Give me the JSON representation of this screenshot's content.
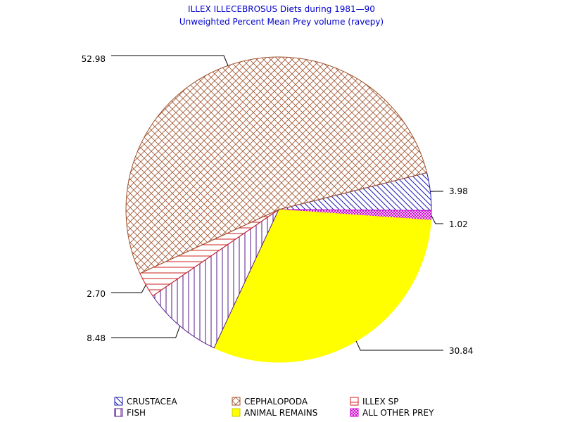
{
  "chart_data": {
    "type": "pie",
    "title": "ILLEX ILLECEBROSUS Diets during 1981—90",
    "subtitle": "Unweighted Percent Mean Prey volume (ravepy)",
    "slices": [
      {
        "name": "CRUSTACEA",
        "value": 3.98,
        "label": "3.98",
        "color": "#1a1ab3",
        "pattern": "diag-down"
      },
      {
        "name": "ALL OTHER PREY",
        "value": 1.02,
        "label": "1.02",
        "color": "#cc00cc",
        "pattern": "crosshatch-dense"
      },
      {
        "name": "ANIMAL REMAINS",
        "value": 30.84,
        "label": "30.84",
        "color": "#ffff00",
        "pattern": "solid"
      },
      {
        "name": "FISH",
        "value": 8.48,
        "label": "8.48",
        "color": "#551a8b",
        "pattern": "vertical"
      },
      {
        "name": "ILLEX SP",
        "value": 2.7,
        "label": "2.70",
        "color": "#cc2222",
        "pattern": "horizontal"
      },
      {
        "name": "CEPHALOPODA",
        "value": 52.98,
        "label": "52.98",
        "color": "#a0522d",
        "pattern": "crosshatch"
      }
    ],
    "legend": {
      "placement": "bottom",
      "items": [
        {
          "name": "CRUSTACEA"
        },
        {
          "name": "CEPHALOPODA"
        },
        {
          "name": "ILLEX SP"
        },
        {
          "name": "FISH"
        },
        {
          "name": "ANIMAL REMAINS"
        },
        {
          "name": "ALL OTHER PREY"
        }
      ]
    }
  }
}
